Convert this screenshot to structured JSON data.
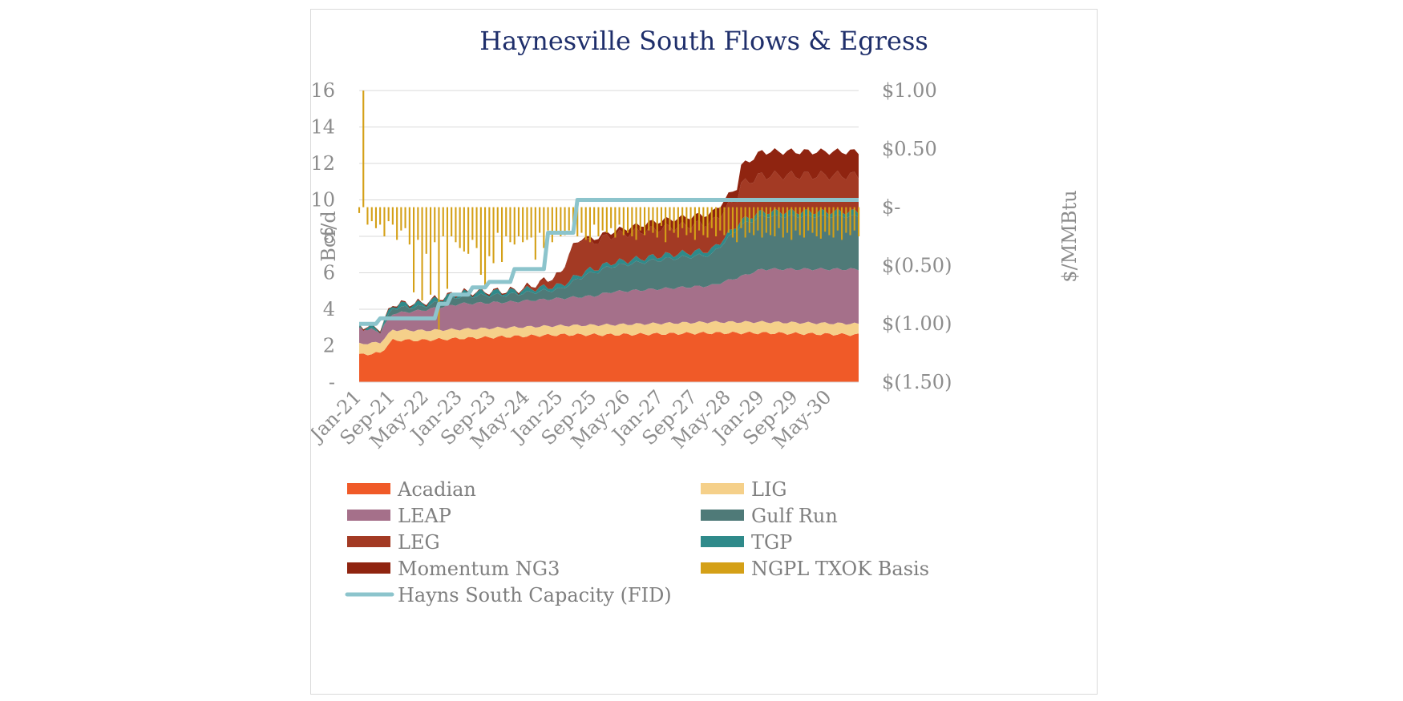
{
  "chart_data": {
    "type": "area",
    "title": "Haynesville South Flows & Egress",
    "ylabel": "Bcf/d",
    "y2label": "$/MMBtu",
    "ylim": [
      0,
      16
    ],
    "y2lim": [
      -1.5,
      1.0
    ],
    "yticks": [
      {
        "value": 0,
        "label": "-"
      },
      {
        "value": 2,
        "label": "2"
      },
      {
        "value": 4,
        "label": "4"
      },
      {
        "value": 6,
        "label": "6"
      },
      {
        "value": 8,
        "label": "8"
      },
      {
        "value": 10,
        "label": "10"
      },
      {
        "value": 12,
        "label": "12"
      },
      {
        "value": 14,
        "label": "14"
      },
      {
        "value": 16,
        "label": "16"
      }
    ],
    "y2ticks": [
      {
        "value": 1.0,
        "label": "$1.00"
      },
      {
        "value": 0.5,
        "label": "$0.50"
      },
      {
        "value": 0,
        "label": "$-"
      },
      {
        "value": -0.5,
        "label": "$(0.50)"
      },
      {
        "value": -1.0,
        "label": "$(1.00)"
      },
      {
        "value": -1.5,
        "label": "$(1.50)"
      }
    ],
    "xticks": [
      "Jan-21",
      "Sep-21",
      "May-22",
      "Jan-23",
      "Sep-23",
      "May-24",
      "Jan-25",
      "Sep-25",
      "May-26",
      "Jan-27",
      "Sep-27",
      "May-28",
      "Jan-29",
      "Sep-29",
      "May-30"
    ],
    "x_period": "monthly, Jan-21 to Dec-30",
    "grid": true,
    "legend_position": "bottom",
    "stack_series": [
      {
        "name": "Acadian",
        "color": "#f05a28",
        "points": [
          [
            0,
            1.5
          ],
          [
            5,
            1.6
          ],
          [
            8,
            2.3
          ],
          [
            15,
            2.3
          ],
          [
            24,
            2.4
          ],
          [
            36,
            2.5
          ],
          [
            48,
            2.6
          ],
          [
            60,
            2.6
          ],
          [
            72,
            2.65
          ],
          [
            84,
            2.7
          ],
          [
            96,
            2.7
          ],
          [
            119,
            2.6
          ]
        ]
      },
      {
        "name": "LIG",
        "color": "#f5d08a",
        "points": [
          [
            0,
            0.6
          ],
          [
            24,
            0.5
          ],
          [
            48,
            0.5
          ],
          [
            60,
            0.55
          ],
          [
            84,
            0.6
          ],
          [
            119,
            0.6
          ]
        ]
      },
      {
        "name": "LEAP",
        "color": "#a5708a",
        "points": [
          [
            0,
            0.9
          ],
          [
            5,
            0.6
          ],
          [
            8,
            0.9
          ],
          [
            15,
            1.1
          ],
          [
            24,
            1.4
          ],
          [
            36,
            1.4
          ],
          [
            48,
            1.5
          ],
          [
            56,
            1.6
          ],
          [
            60,
            1.8
          ],
          [
            72,
            1.9
          ],
          [
            84,
            2.0
          ],
          [
            91,
            2.5
          ],
          [
            96,
            2.9
          ],
          [
            119,
            3.0
          ]
        ]
      },
      {
        "name": "Gulf Run",
        "color": "#4f7a78",
        "points": [
          [
            0,
            0.0
          ],
          [
            5,
            0.0
          ],
          [
            8,
            0.3
          ],
          [
            15,
            0.2
          ],
          [
            24,
            0.4
          ],
          [
            36,
            0.4
          ],
          [
            48,
            0.5
          ],
          [
            54,
            1.2
          ],
          [
            60,
            1.4
          ],
          [
            72,
            1.6
          ],
          [
            84,
            1.7
          ],
          [
            91,
            2.8
          ],
          [
            96,
            2.9
          ],
          [
            119,
            2.9
          ]
        ]
      },
      {
        "name": "TGP",
        "color": "#2f8a8a",
        "points": [
          [
            0,
            0.1
          ],
          [
            8,
            0.2
          ],
          [
            24,
            0.2
          ],
          [
            60,
            0.2
          ],
          [
            84,
            0.25
          ],
          [
            119,
            0.25
          ]
        ]
      },
      {
        "name": "LEG",
        "color": "#a33a24",
        "points": [
          [
            0,
            0.0
          ],
          [
            38,
            0.0
          ],
          [
            42,
            0.2
          ],
          [
            48,
            0.6
          ],
          [
            50,
            1.5
          ],
          [
            53,
            2.0
          ],
          [
            55,
            1.5
          ],
          [
            60,
            1.5
          ],
          [
            72,
            1.5
          ],
          [
            84,
            1.5
          ],
          [
            90,
            1.5
          ],
          [
            91,
            2.0
          ],
          [
            119,
            2.0
          ]
        ]
      },
      {
        "name": "Momentum NG3",
        "color": "#8f2410",
        "points": [
          [
            0,
            0.0
          ],
          [
            53,
            0.0
          ],
          [
            55,
            0.2
          ],
          [
            60,
            0.2
          ],
          [
            70,
            0.4
          ],
          [
            84,
            0.5
          ],
          [
            90,
            0.6
          ],
          [
            91,
            1.0
          ],
          [
            96,
            1.3
          ],
          [
            119,
            1.3
          ]
        ]
      }
    ],
    "capacity_series": {
      "name": "Hayns South Capacity (FID)",
      "color": "#8cc4cc",
      "points": [
        [
          0,
          3.2
        ],
        [
          4,
          3.2
        ],
        [
          5,
          3.5
        ],
        [
          18,
          3.5
        ],
        [
          19,
          4.3
        ],
        [
          21,
          4.3
        ],
        [
          22,
          4.8
        ],
        [
          26,
          4.8
        ],
        [
          27,
          5.2
        ],
        [
          30,
          5.2
        ],
        [
          31,
          5.5
        ],
        [
          36,
          5.5
        ],
        [
          37,
          6.2
        ],
        [
          44,
          6.2
        ],
        [
          45,
          8.2
        ],
        [
          51,
          8.2
        ],
        [
          52,
          10.0
        ],
        [
          119,
          10.0
        ]
      ]
    },
    "basis_series": {
      "name": "NGPL TXOK Basis",
      "color": "#d4a017",
      "values": [
        -0.05,
        0.95,
        -0.15,
        -0.12,
        -0.18,
        -0.15,
        -0.25,
        -0.12,
        -0.15,
        -0.28,
        -0.2,
        -0.18,
        -0.32,
        -0.22,
        -0.28,
        -0.25,
        -0.4,
        -0.35,
        -0.3,
        -0.38,
        -0.25,
        -0.22,
        -0.25,
        -0.3,
        -0.35,
        -0.38,
        -0.4,
        -0.28,
        -0.35,
        -0.3,
        -0.25,
        -0.42,
        -0.48,
        -0.22,
        -0.38,
        -0.25,
        -0.3,
        -0.32,
        -0.25,
        -0.38,
        -0.28,
        -0.26,
        -0.24,
        -0.22,
        -0.35,
        -0.2,
        -0.3,
        -0.22,
        -0.25,
        -0.24,
        -0.2,
        -0.18,
        -0.25,
        -0.22,
        -0.28,
        -0.3,
        -0.15,
        -0.25,
        -0.2,
        -0.22,
        -0.18,
        -0.26,
        -0.15,
        -0.24,
        -0.22,
        -0.25,
        -0.28,
        -0.2,
        -0.24,
        -0.2,
        -0.22,
        -0.26,
        -0.16,
        -0.3,
        -0.2,
        -0.22,
        -0.26,
        -0.18,
        -0.24,
        -0.22,
        -0.28,
        -0.2,
        -0.24,
        -0.26,
        -0.18,
        -0.25,
        -0.2,
        -0.24,
        -0.22,
        -0.26,
        -0.3,
        -0.18,
        -0.26,
        -0.22,
        -0.24,
        -0.2,
        -0.26,
        -0.22,
        -0.24,
        -0.25,
        -0.18,
        -0.26,
        -0.22,
        -0.28,
        -0.2,
        -0.24,
        -0.26,
        -0.2,
        -0.22,
        -0.25,
        -0.27,
        -0.21,
        -0.24,
        -0.26,
        -0.2,
        -0.28,
        -0.22,
        -0.24,
        -0.2,
        -0.25
      ],
      "spikes": [
        [
          1,
          1.0
        ],
        [
          13,
          -0.73
        ],
        [
          15,
          -0.8
        ],
        [
          17,
          -0.75
        ],
        [
          19,
          -1.05
        ],
        [
          21,
          -0.7
        ],
        [
          29,
          -0.58
        ],
        [
          30,
          -0.68
        ],
        [
          34,
          -0.47
        ],
        [
          39,
          -0.3
        ],
        [
          42,
          -0.45
        ]
      ]
    },
    "legend": [
      {
        "name": "Acadian",
        "color": "#f05a28",
        "kind": "area"
      },
      {
        "name": "LIG",
        "color": "#f5d08a",
        "kind": "area"
      },
      {
        "name": "LEAP",
        "color": "#a5708a",
        "kind": "area"
      },
      {
        "name": "Gulf Run",
        "color": "#4f7a78",
        "kind": "area"
      },
      {
        "name": "LEG",
        "color": "#a33a24",
        "kind": "area"
      },
      {
        "name": "TGP",
        "color": "#2f8a8a",
        "kind": "area"
      },
      {
        "name": "Momentum NG3",
        "color": "#8f2410",
        "kind": "area"
      },
      {
        "name": "NGPL TXOK Basis",
        "color": "#d4a017",
        "kind": "bar"
      },
      {
        "name": "Hayns South Capacity (FID)",
        "color": "#8cc4cc",
        "kind": "line"
      }
    ]
  }
}
